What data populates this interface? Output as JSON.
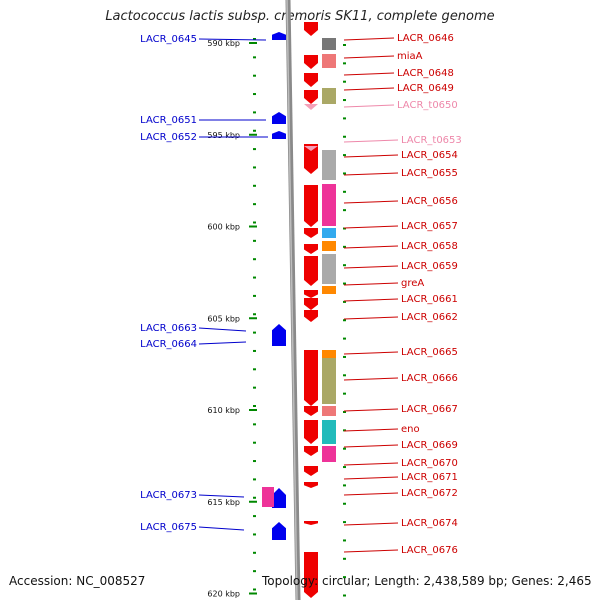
{
  "title": "Lactococcus lactis subsp. cremoris SK11, complete genome",
  "accession": "Accession: NC_008527",
  "topology": "Topology: circular; Length: 2,438,589 bp; Genes: 2,465",
  "colors": {
    "gene_forward": "#ee0000",
    "gene_reverse": "#0000ee",
    "trna": "#f4a0b8",
    "label_reverse": "#0000cc",
    "label_forward": "#cc0000",
    "label_trna": "#ee88aa",
    "tick": "#008800",
    "backbone": "#888888"
  },
  "scale_labels": [
    {
      "text": "590 kbp",
      "kbp": 590
    },
    {
      "text": "595 kbp",
      "kbp": 595
    },
    {
      "text": "600 kbp",
      "kbp": 600
    },
    {
      "text": "605 kbp",
      "kbp": 605
    },
    {
      "text": "610 kbp",
      "kbp": 610
    },
    {
      "text": "615 kbp",
      "kbp": 615
    },
    {
      "text": "620 kbp",
      "kbp": 620
    }
  ],
  "left_labels": [
    {
      "text": "LACR_0645"
    },
    {
      "text": "LACR_0651"
    },
    {
      "text": "LACR_0652"
    },
    {
      "text": "LACR_0663"
    },
    {
      "text": "LACR_0664"
    },
    {
      "text": "LACR_0673"
    },
    {
      "text": "LACR_0675"
    }
  ],
  "right_labels": [
    {
      "text": "LACR_0646",
      "kind": "gene"
    },
    {
      "text": "miaA",
      "kind": "gene"
    },
    {
      "text": "LACR_0648",
      "kind": "gene"
    },
    {
      "text": "LACR_0649",
      "kind": "gene"
    },
    {
      "text": "LACR_t0650",
      "kind": "trna"
    },
    {
      "text": "LACR_t0653",
      "kind": "trna"
    },
    {
      "text": "LACR_0654",
      "kind": "gene"
    },
    {
      "text": "LACR_0655",
      "kind": "gene"
    },
    {
      "text": "LACR_0656",
      "kind": "gene"
    },
    {
      "text": "LACR_0657",
      "kind": "gene"
    },
    {
      "text": "LACR_0658",
      "kind": "gene"
    },
    {
      "text": "LACR_0659",
      "kind": "gene"
    },
    {
      "text": "greA",
      "kind": "gene"
    },
    {
      "text": "LACR_0661",
      "kind": "gene"
    },
    {
      "text": "LACR_0662",
      "kind": "gene"
    },
    {
      "text": "LACR_0665",
      "kind": "gene"
    },
    {
      "text": "LACR_0666",
      "kind": "gene"
    },
    {
      "text": "LACR_0667",
      "kind": "gene"
    },
    {
      "text": "eno",
      "kind": "gene"
    },
    {
      "text": "LACR_0669",
      "kind": "gene"
    },
    {
      "text": "LACR_0670",
      "kind": "gene"
    },
    {
      "text": "LACR_0671",
      "kind": "gene"
    },
    {
      "text": "LACR_0672",
      "kind": "gene"
    },
    {
      "text": "LACR_0674",
      "kind": "gene"
    },
    {
      "text": "LACR_0676",
      "kind": "gene"
    }
  ]
}
